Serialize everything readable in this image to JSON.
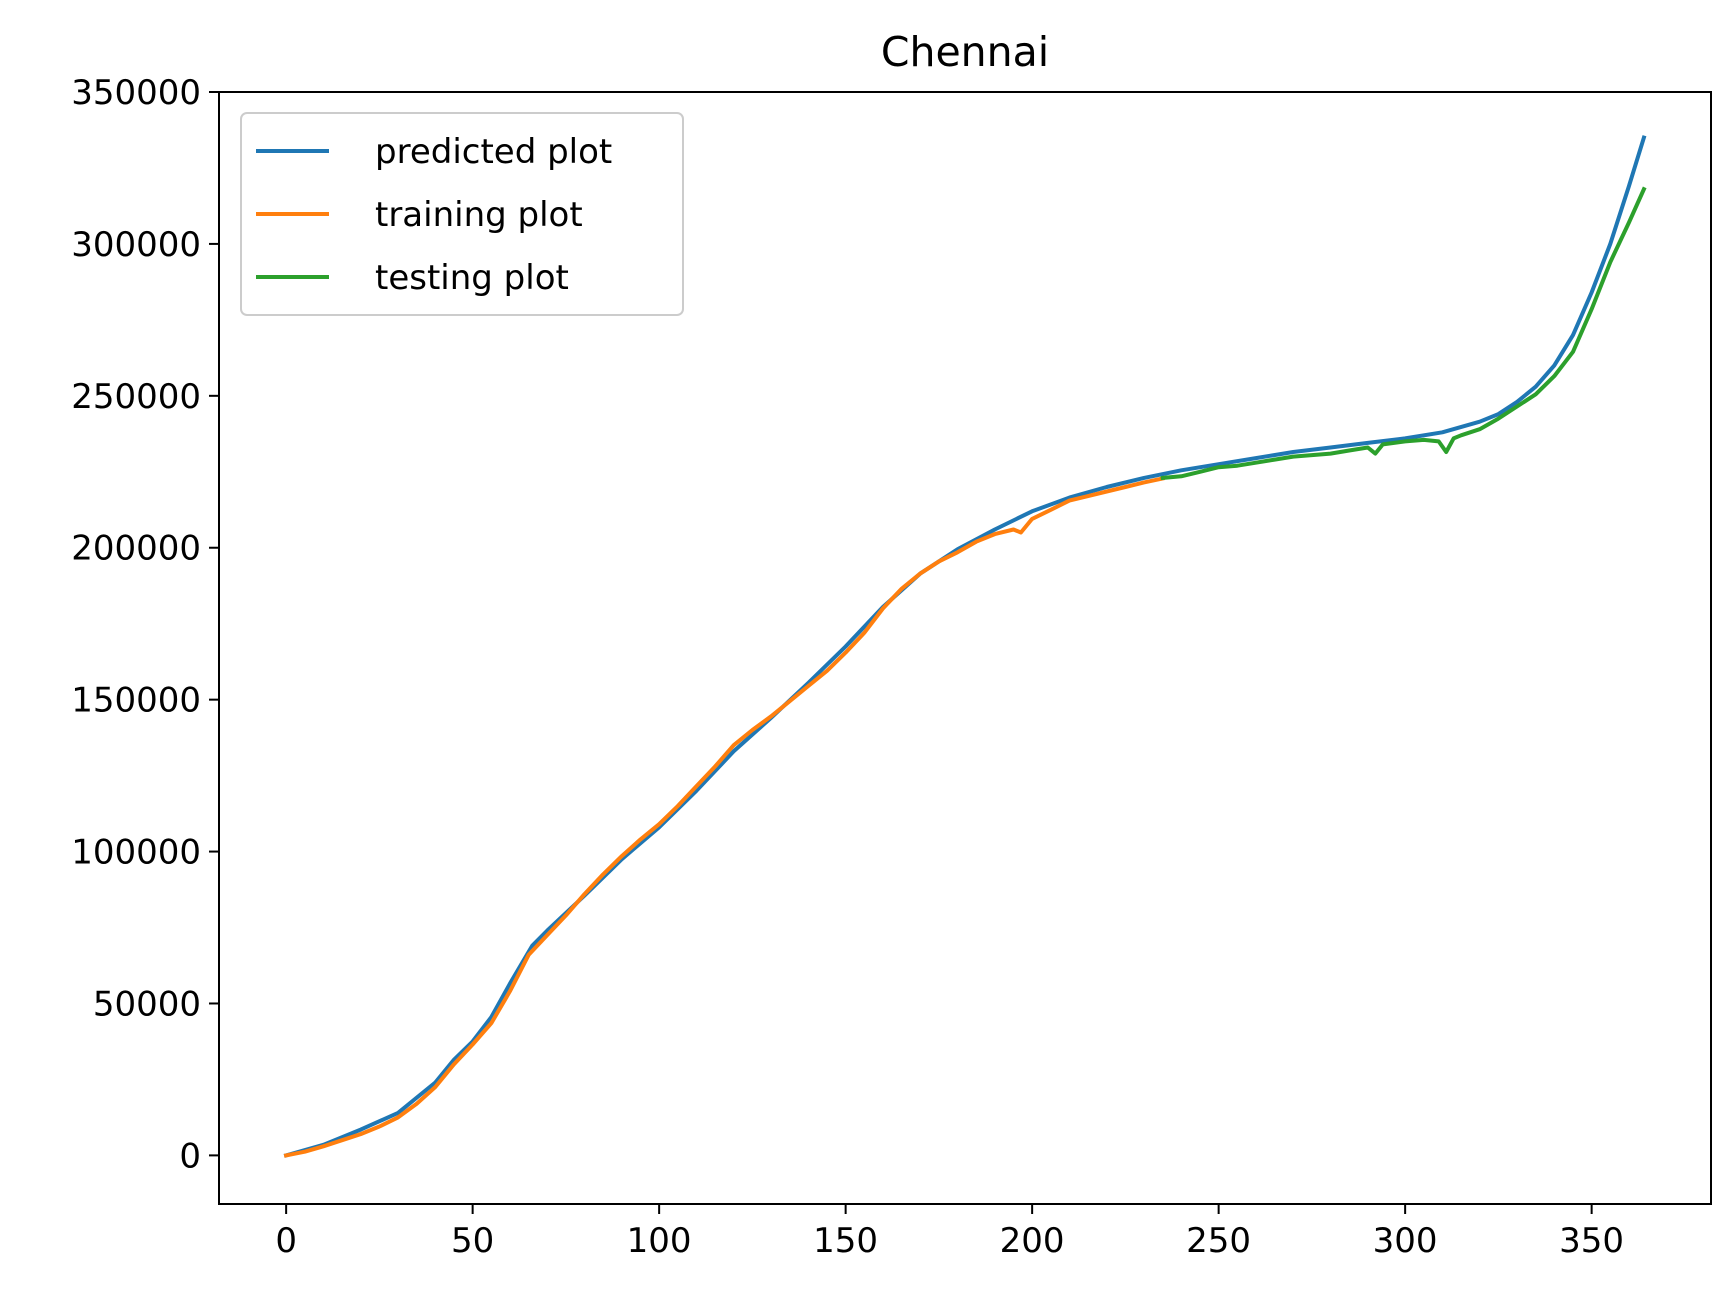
{
  "chart_data": {
    "type": "line",
    "title": "Chennai",
    "xlabel": "",
    "ylabel": "",
    "xlim": [
      -18,
      382
    ],
    "ylim": [
      -16000,
      350000
    ],
    "xticks": [
      0,
      50,
      100,
      150,
      200,
      250,
      300,
      350
    ],
    "yticks": [
      0,
      50000,
      100000,
      150000,
      200000,
      250000,
      300000,
      350000
    ],
    "xtick_labels": [
      "0",
      "50",
      "100",
      "150",
      "200",
      "250",
      "300",
      "350"
    ],
    "ytick_labels": [
      "0",
      "50000",
      "100000",
      "150000",
      "200000",
      "250000",
      "300000",
      "350000"
    ],
    "grid": false,
    "legend_position": "upper left",
    "series": [
      {
        "name": "predicted plot",
        "color": "#1f77b4",
        "x": [
          0,
          10,
          20,
          30,
          40,
          45,
          50,
          55,
          60,
          66,
          70,
          80,
          90,
          100,
          110,
          120,
          130,
          140,
          150,
          160,
          170,
          180,
          190,
          200,
          210,
          220,
          230,
          240,
          250,
          260,
          270,
          280,
          290,
          300,
          310,
          320,
          325,
          330,
          335,
          340,
          345,
          350,
          355,
          360,
          364
        ],
        "y": [
          0,
          3500,
          8500,
          14000,
          24000,
          31500,
          37500,
          45500,
          56500,
          69000,
          74000,
          85500,
          97500,
          108000,
          120000,
          133000,
          144000,
          155500,
          167500,
          180500,
          191500,
          199500,
          206000,
          212000,
          216500,
          220000,
          223000,
          225500,
          227500,
          229500,
          231500,
          233000,
          234500,
          236000,
          238000,
          241500,
          244000,
          248000,
          253000,
          260000,
          270000,
          284000,
          300000,
          319000,
          335000
        ]
      },
      {
        "name": "training plot",
        "color": "#ff7f0e",
        "x": [
          0,
          5,
          10,
          15,
          20,
          25,
          30,
          35,
          40,
          45,
          50,
          55,
          60,
          65,
          70,
          75,
          80,
          85,
          90,
          95,
          100,
          105,
          110,
          115,
          120,
          125,
          130,
          135,
          140,
          145,
          150,
          155,
          160,
          165,
          170,
          175,
          180,
          185,
          190,
          195,
          197,
          200,
          205,
          210,
          215,
          220,
          225,
          230,
          235
        ],
        "y": [
          0,
          1200,
          3000,
          5000,
          7000,
          9500,
          12500,
          17000,
          22500,
          30000,
          36500,
          43500,
          54000,
          66000,
          72500,
          79000,
          86000,
          92500,
          98500,
          104000,
          109000,
          115000,
          121500,
          128000,
          135000,
          140000,
          144500,
          149500,
          154500,
          159500,
          165500,
          172000,
          180000,
          186500,
          191500,
          195500,
          198500,
          202000,
          204500,
          206000,
          205000,
          209500,
          212500,
          215500,
          217000,
          218500,
          220000,
          221500,
          222800
        ]
      },
      {
        "name": "testing plot",
        "color": "#2ca02c",
        "x": [
          235,
          240,
          245,
          250,
          255,
          260,
          265,
          270,
          275,
          280,
          285,
          290,
          292,
          294,
          300,
          305,
          309,
          311,
          313,
          315,
          320,
          325,
          330,
          335,
          340,
          345,
          350,
          355,
          360,
          364
        ],
        "y": [
          223000,
          223500,
          225000,
          226500,
          227000,
          228000,
          229000,
          230000,
          230500,
          231000,
          232000,
          233000,
          231000,
          234000,
          235000,
          235500,
          235000,
          231500,
          236000,
          237000,
          239000,
          242500,
          246500,
          250500,
          256500,
          264500,
          278500,
          294000,
          307000,
          318000
        ]
      }
    ]
  }
}
